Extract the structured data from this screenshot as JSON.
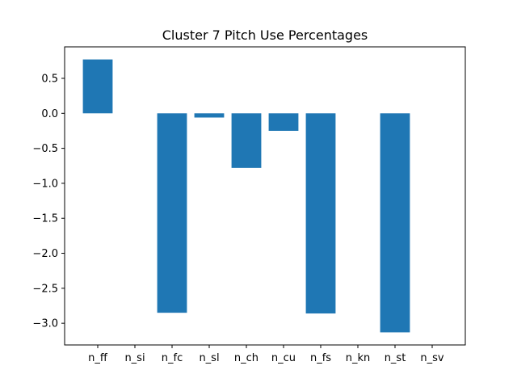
{
  "chart_data": {
    "type": "bar",
    "title": "Cluster 7 Pitch Use Percentages",
    "xlabel": "",
    "ylabel": "",
    "categories": [
      "n_ff",
      "n_si",
      "n_fc",
      "n_sl",
      "n_ch",
      "n_cu",
      "n_fs",
      "n_kn",
      "n_st",
      "n_sv"
    ],
    "values": [
      0.77,
      0.0,
      -2.85,
      -0.06,
      -0.78,
      -0.25,
      -2.86,
      0.0,
      -3.13,
      0.0
    ],
    "ylim": [
      -3.31,
      0.95
    ],
    "yticks": [
      0.5,
      0.0,
      -0.5,
      -1.0,
      -1.5,
      -2.0,
      -2.5,
      -3.0
    ],
    "ytick_labels": [
      "0.5",
      "0.0",
      "−0.5",
      "−1.0",
      "−1.5",
      "−2.0",
      "−2.5",
      "−3.0"
    ],
    "grid": false,
    "legend": "none",
    "bar_color": "#1f77b4"
  }
}
